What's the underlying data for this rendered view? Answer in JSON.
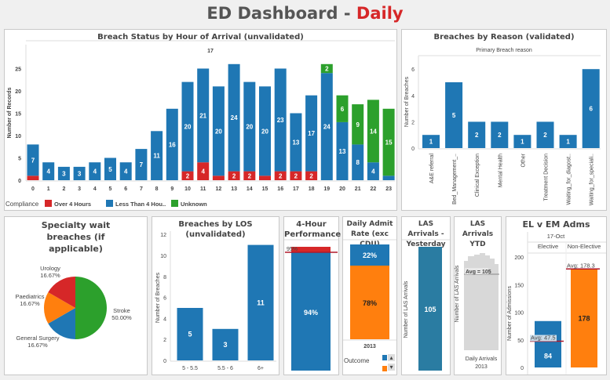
{
  "header": {
    "title": "ED Dashboard - ",
    "title_accent": "Daily"
  },
  "colors": {
    "over": "#d62728",
    "less": "#1f77b4",
    "unknown": "#2ca02c",
    "orange": "#ff7f0e",
    "teal": "#2a7ca2",
    "gray": "#d8d8d8",
    "avg_line": "#b0182a"
  },
  "panels": {
    "breach_hour": "Breach Status by Hour of Arrival (unvalidated)",
    "breach_reason": "Breaches by Reason (validated)",
    "specialty": "Specialty wait breaches (if applicable)",
    "los": "Breaches by LOS (unvalidated)",
    "four_hour": "4-Hour Performance",
    "admit_rate": "Daily Admit Rate (exc CDU)",
    "las_yesterday": "LAS Arrivals - Yesterday",
    "las_ytd": "LAS Arrivals YTD",
    "el_em": "EL v EM Adms"
  },
  "chart_data": [
    {
      "type": "bar",
      "id": "breach_hour",
      "header": "17",
      "ylabel": "Number of Records",
      "ylim": [
        0,
        27
      ],
      "yticks": [
        0,
        5,
        10,
        15,
        20,
        25
      ],
      "categories": [
        "0",
        "1",
        "2",
        "3",
        "4",
        "5",
        "6",
        "7",
        "8",
        "9",
        "10",
        "11",
        "12",
        "13",
        "14",
        "15",
        "16",
        "17",
        "18",
        "19",
        "20",
        "21",
        "22",
        "23"
      ],
      "series": [
        {
          "name": "Over 4 Hours",
          "values": [
            1,
            0,
            0,
            0,
            0,
            0,
            0,
            0,
            0,
            0,
            2,
            4,
            1,
            2,
            2,
            1,
            2,
            2,
            2,
            0,
            0,
            0,
            0,
            0
          ]
        },
        {
          "name": "Less Than 4 Hou..",
          "values": [
            7,
            4,
            3,
            3,
            4,
            5,
            4,
            7,
            11,
            16,
            20,
            21,
            20,
            24,
            20,
            20,
            23,
            13,
            17,
            24,
            13,
            8,
            4,
            1
          ]
        },
        {
          "name": "Unknown",
          "values": [
            0,
            0,
            0,
            0,
            0,
            0,
            0,
            0,
            0,
            0,
            0,
            0,
            0,
            0,
            0,
            0,
            0,
            0,
            0,
            2,
            6,
            9,
            14,
            15
          ]
        }
      ],
      "legend_title": "Compliance",
      "legend": "bottom"
    },
    {
      "type": "bar",
      "id": "breach_reason",
      "subtitle": "Primary Breach reason",
      "ylabel": "Number of Breaches",
      "ylim": [
        0,
        7
      ],
      "yticks": [
        0,
        2,
        4,
        6
      ],
      "categories": [
        "A&E referral",
        "Bed_Management_..",
        "Clinical Exception",
        "Mental Health",
        "Other",
        "Treatment Decision",
        "Waiting_for_diagost..",
        "Waiting_for_speciali.."
      ],
      "values": [
        1,
        5,
        2,
        2,
        1,
        2,
        1,
        6
      ]
    },
    {
      "type": "pie",
      "id": "specialty",
      "slices": [
        {
          "label": "Stroke",
          "pct": "50.00%",
          "value": 50
        },
        {
          "label": "General Surgery",
          "pct": "16.67%",
          "value": 16.67
        },
        {
          "label": "Paediatrics",
          "pct": "16.67%",
          "value": 16.67
        },
        {
          "label": "Urology",
          "pct": "16.67%",
          "value": 16.67
        }
      ]
    },
    {
      "type": "bar",
      "id": "los",
      "ylabel": "Number of Breaches",
      "ylim": [
        0,
        12
      ],
      "yticks": [
        0,
        2,
        4,
        6,
        8,
        10,
        12
      ],
      "categories": [
        "5 - 5.5",
        "5.5 - 6",
        "6+"
      ],
      "values": [
        5,
        3,
        11
      ]
    },
    {
      "type": "bar",
      "id": "four_hour",
      "value": 94,
      "value_label": "94%",
      "target": 95,
      "target_label": "95%"
    },
    {
      "type": "bar",
      "id": "admit_rate",
      "category": "2013",
      "legend_title": "Outcome",
      "series": [
        {
          "value": 22,
          "label": "22%"
        },
        {
          "value": 78,
          "label": "78%"
        }
      ]
    },
    {
      "type": "bar",
      "id": "las_yesterday",
      "ylabel": "Number of LAS Arrivals",
      "value": 105,
      "value_label": "105"
    },
    {
      "type": "area",
      "id": "las_ytd",
      "ylabel": "Number of LAS Arrivals",
      "avg_label": "Avg = 105",
      "xlabel": "Daily Arrivals",
      "category": "2013"
    },
    {
      "type": "bar",
      "id": "el_em",
      "header": "17-Oct",
      "ylabel": "Number of Admissions",
      "ylim": [
        0,
        210
      ],
      "yticks": [
        0,
        50,
        100,
        150,
        200
      ],
      "categories": [
        "Elective",
        "Non-Elective"
      ],
      "values": [
        84,
        178
      ],
      "value_labels": [
        "84",
        "178"
      ],
      "avg": [
        47.5,
        178.3
      ],
      "avg_labels": [
        "Avg: 47.5",
        "Avg: 178.3"
      ]
    }
  ]
}
